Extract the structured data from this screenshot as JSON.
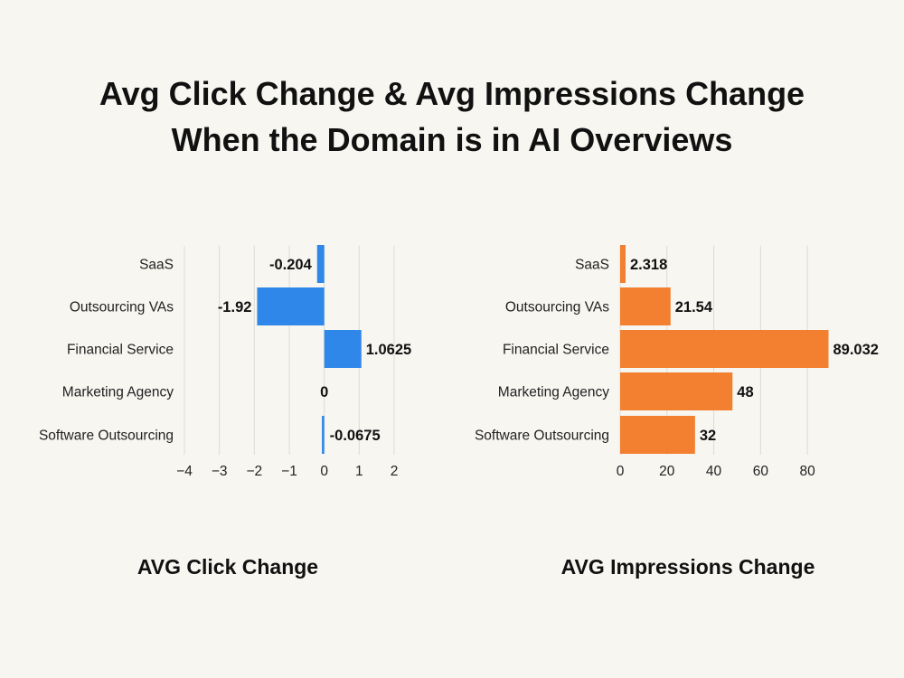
{
  "title_lines": [
    "Avg Click Change & Avg Impressions Change",
    "When the Domain is in AI Overviews"
  ],
  "chart_data": [
    {
      "type": "bar",
      "orientation": "horizontal",
      "title": "AVG Click Change",
      "categories": [
        "SaaS",
        "Outsourcing VAs",
        "Financial Service",
        "Marketing Agency",
        "Software Outsourcing"
      ],
      "values": [
        -0.204,
        -1.92,
        1.0625,
        0,
        -0.0675
      ],
      "value_labels": [
        "-0.204",
        "-1.92",
        "1.0625",
        "0",
        "-0.0675"
      ],
      "xlim": [
        -4,
        2
      ],
      "xticks": [
        -4,
        -3,
        -2,
        -1,
        0,
        1,
        2
      ],
      "xtick_labels": [
        "−4",
        "−3",
        "−2",
        "−1",
        "0",
        "1",
        "2"
      ],
      "color": "#2f87ea",
      "grid": true
    },
    {
      "type": "bar",
      "orientation": "horizontal",
      "title": "AVG Impressions Change",
      "categories": [
        "SaaS",
        "Outsourcing VAs",
        "Financial Service",
        "Marketing Agency",
        "Software Outsourcing"
      ],
      "values": [
        2.318,
        21.54,
        89.032,
        48,
        32
      ],
      "value_labels": [
        "2.318",
        "21.54",
        "89.032",
        "48",
        "32"
      ],
      "xlim": [
        0,
        90
      ],
      "xticks": [
        0,
        20,
        40,
        60,
        80
      ],
      "xtick_labels": [
        "0",
        "20",
        "40",
        "60",
        "80"
      ],
      "color": "#f28030",
      "grid": true
    }
  ]
}
